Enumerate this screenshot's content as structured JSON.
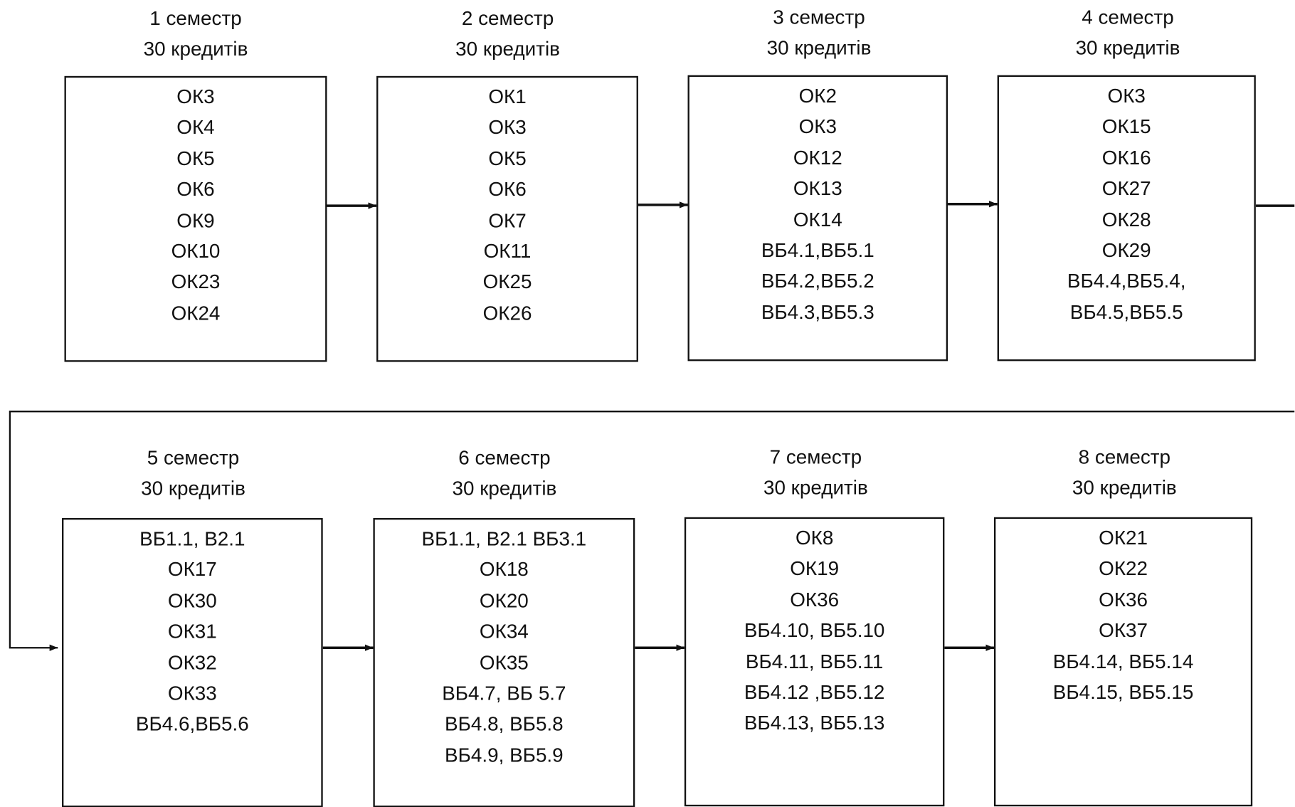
{
  "diagram": {
    "semesters": [
      {
        "name": "1 семестр",
        "credits": "30 кредитів",
        "items": [
          "ОК3",
          "ОК4",
          "ОК5",
          "ОК6",
          "ОК9",
          "ОК10",
          "ОК23",
          "ОК24"
        ]
      },
      {
        "name": "2 семестр",
        "credits": "30 кредитів",
        "items": [
          "ОК1",
          "ОК3",
          "ОК5",
          "ОК6",
          "ОК7",
          "ОК11",
          "ОК25",
          "ОК26"
        ]
      },
      {
        "name": "3 семестр",
        "credits": "30 кредитів",
        "items": [
          "ОК2",
          "ОК3",
          "ОК12",
          "ОК13",
          "ОК14",
          "ВБ4.1,ВБ5.1",
          "ВБ4.2,ВБ5.2",
          "ВБ4.3,ВБ5.3"
        ]
      },
      {
        "name": "4 семестр",
        "credits": "30 кредитів",
        "items": [
          "ОК3",
          "ОК15",
          "ОК16",
          "ОК27",
          "ОК28",
          "ОК29",
          "ВБ4.4,ВБ5.4,",
          "ВБ4.5,ВБ5.5"
        ]
      },
      {
        "name": "5 семестр",
        "credits": "30 кредитів",
        "items": [
          "ВБ1.1, В2.1",
          "ОК17",
          "ОК30",
          "ОК31",
          "ОК32",
          "ОК33",
          "ВБ4.6,ВБ5.6"
        ]
      },
      {
        "name": "6 семестр",
        "credits": "30 кредитів",
        "items": [
          "ВБ1.1, В2.1 ВБ3.1",
          "ОК18",
          "ОК20",
          "ОК34",
          "ОК35",
          "ВБ4.7, ВБ 5.7",
          "ВБ4.8, ВБ5.8",
          "ВБ4.9, ВБ5.9"
        ]
      },
      {
        "name": "7 семестр",
        "credits": "30 кредитів",
        "items": [
          "ОК8",
          "ОК19",
          "ОК36",
          "ВБ4.10, ВБ5.10",
          "ВБ4.11, ВБ5.11",
          "ВБ4.12 ,ВБ5.12",
          "ВБ4.13, ВБ5.13"
        ]
      },
      {
        "name": "8 семестр",
        "credits": "30 кредитів",
        "items": [
          "ОК21",
          "ОК22",
          "ОК36",
          "ОК37",
          "ВБ4.14, ВБ5.14",
          "ВБ4.15, ВБ5.15"
        ]
      }
    ]
  }
}
